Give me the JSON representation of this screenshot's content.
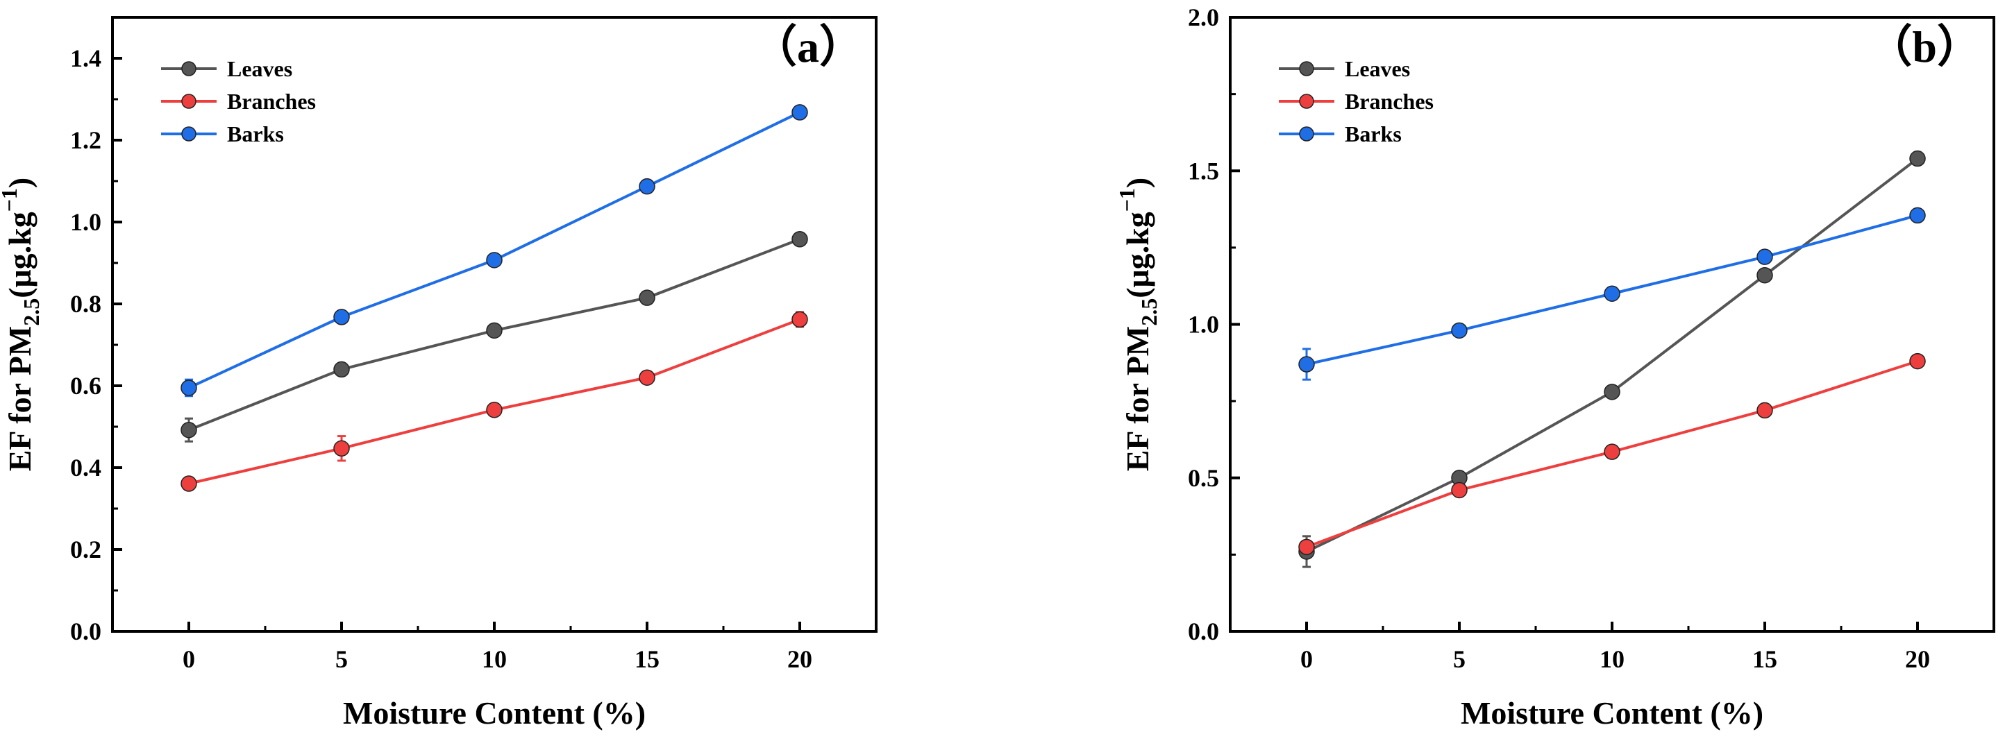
{
  "chart_data": [
    {
      "type": "line",
      "panel_label": "（a）",
      "x": [
        0,
        5,
        10,
        15,
        20
      ],
      "xlim": [
        -2.5,
        22.5
      ],
      "x_ticks": [
        "0",
        "5",
        "10",
        "15",
        "20"
      ],
      "ylim": [
        0,
        1.5
      ],
      "y_ticks": [
        "0.0",
        "0.2",
        "0.4",
        "0.6",
        "0.8",
        "1.0",
        "1.2",
        "1.4"
      ],
      "xlabel": "Moisture Content (%)",
      "ylabel_parts": {
        "pre": "EF for PM",
        "sub": "2.5",
        "mid": "(μg.kg",
        "sup": "−1",
        "post": ")"
      },
      "legend_position": "top-left",
      "series": [
        {
          "name": "Leaves",
          "color": "#555555",
          "values": [
            0.492,
            0.64,
            0.735,
            0.815,
            0.958
          ],
          "errors": [
            0.028,
            0.012,
            0.01,
            0.01,
            0.01
          ]
        },
        {
          "name": "Branches",
          "color": "#ee3f3f",
          "values": [
            0.361,
            0.447,
            0.541,
            0.62,
            0.762
          ],
          "errors": [
            0.012,
            0.03,
            0.01,
            0.012,
            0.018
          ]
        },
        {
          "name": "Barks",
          "color": "#1f6ee6",
          "values": [
            0.595,
            0.768,
            0.907,
            1.087,
            1.268
          ],
          "errors": [
            0.02,
            0.01,
            0.01,
            0.01,
            0.01
          ]
        }
      ]
    },
    {
      "type": "line",
      "panel_label": "（b）",
      "x": [
        0,
        5,
        10,
        15,
        20
      ],
      "xlim": [
        -2.5,
        22.5
      ],
      "x_ticks": [
        "0",
        "5",
        "10",
        "15",
        "20"
      ],
      "ylim": [
        0,
        2.0
      ],
      "y_ticks": [
        "0.0",
        "0.5",
        "1.0",
        "1.5",
        "2.0"
      ],
      "xlabel": "Moisture Content (%)",
      "ylabel_parts": {
        "pre": "EF for PM",
        "sub": "2.5",
        "mid": "(μg.kg",
        "sup": "−1",
        "post": ")"
      },
      "legend_position": "top-left",
      "series": [
        {
          "name": "Leaves",
          "color": "#555555",
          "values": [
            0.26,
            0.5,
            0.78,
            1.16,
            1.54
          ],
          "errors": [
            0.05,
            0.01,
            0.01,
            0.01,
            0.01
          ]
        },
        {
          "name": "Branches",
          "color": "#ee3f3f",
          "values": [
            0.275,
            0.46,
            0.585,
            0.72,
            0.88
          ],
          "errors": [
            0.02,
            0.01,
            0.01,
            0.01,
            0.01
          ]
        },
        {
          "name": "Barks",
          "color": "#1f6ee6",
          "values": [
            0.87,
            0.98,
            1.1,
            1.22,
            1.355
          ],
          "errors": [
            0.05,
            0.01,
            0.01,
            0.01,
            0.01
          ]
        }
      ]
    }
  ]
}
